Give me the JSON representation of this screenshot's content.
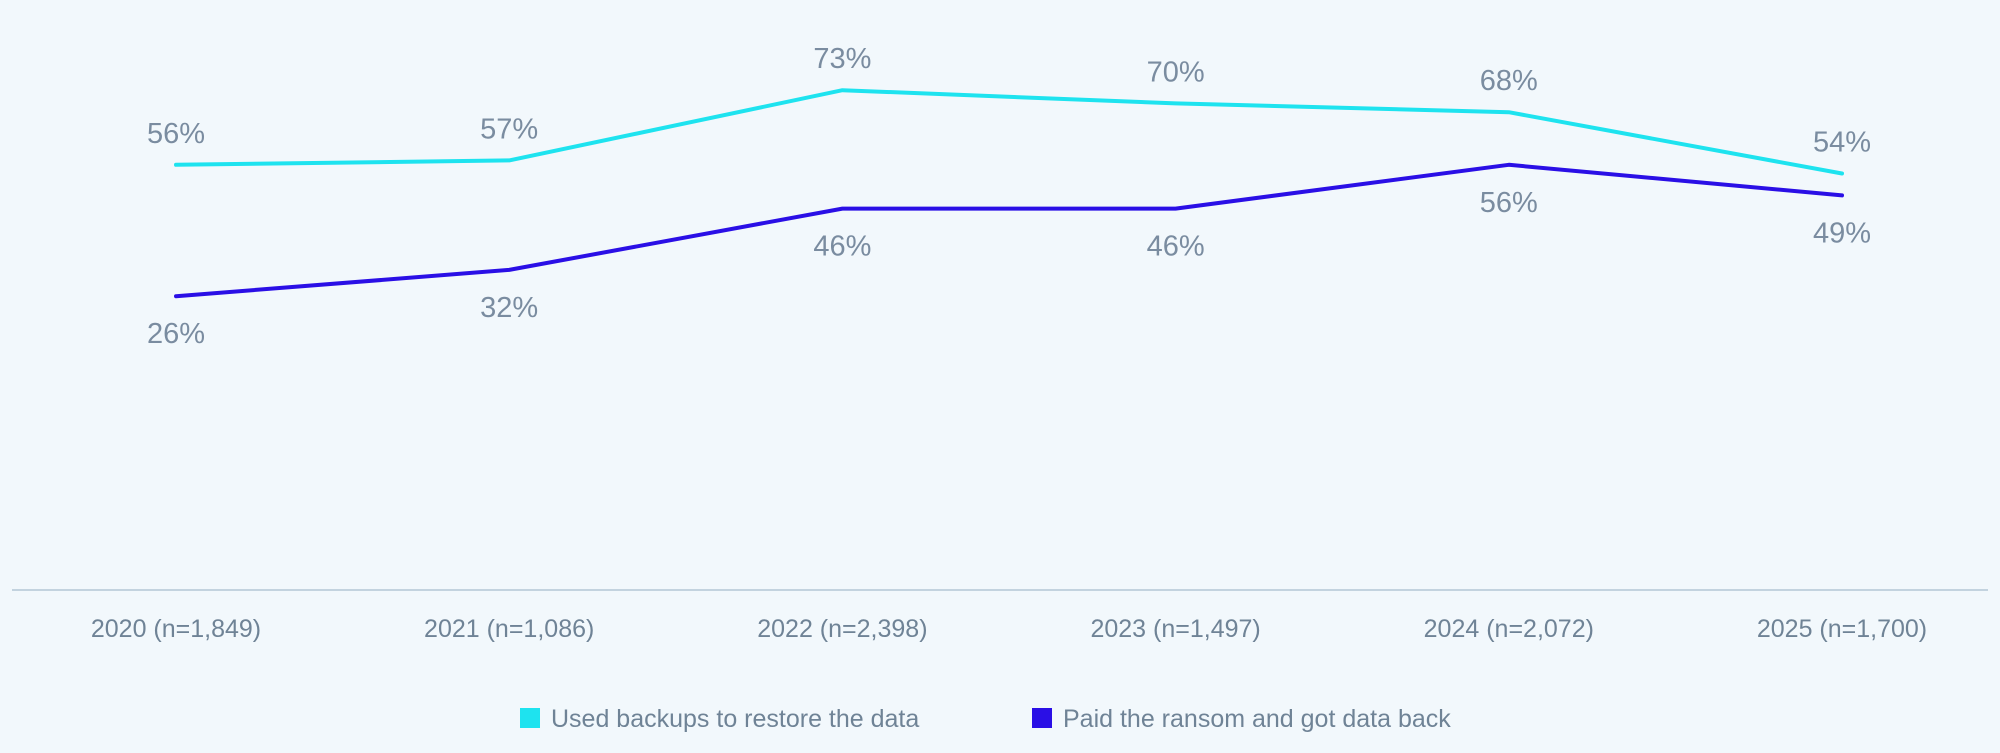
{
  "chart_data": {
    "type": "line",
    "title": "",
    "xlabel": "",
    "ylabel": "",
    "ylim": [
      0,
      100
    ],
    "grid": false,
    "legend_position": "bottom-center",
    "categories": [
      "2020 (n=1,849)",
      "2021 (n=1,086)",
      "2022 (n=2,398)",
      "2023 (n=1,497)",
      "2024 (n=2,072)",
      "2025 (n=1,700)"
    ],
    "series": [
      {
        "name": "Used backups to restore the data",
        "color": "#1ee3ef",
        "values": [
          56,
          57,
          73,
          70,
          68,
          54
        ],
        "labels": [
          "56%",
          "57%",
          "73%",
          "70%",
          "68%",
          "54%"
        ]
      },
      {
        "name": "Paid the ransom and got data back",
        "color": "#2a0fe6",
        "values": [
          26,
          32,
          46,
          46,
          56,
          49
        ],
        "labels": [
          "26%",
          "32%",
          "46%",
          "46%",
          "56%",
          "49%"
        ]
      }
    ],
    "axis_color": "#c3d3df"
  }
}
